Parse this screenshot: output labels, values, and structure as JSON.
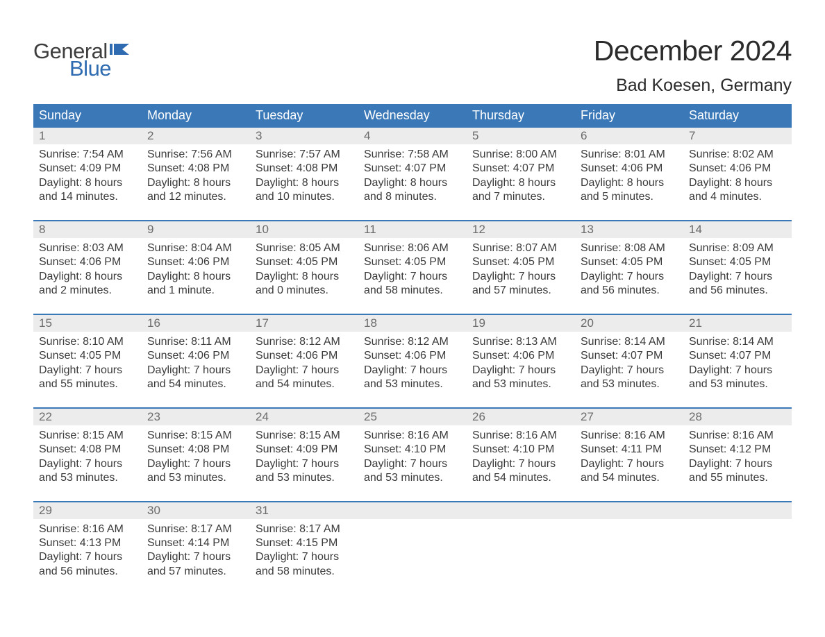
{
  "brand": {
    "text_general": "General",
    "text_blue": "Blue",
    "general_color": "#3d3d3d",
    "blue_color": "#2e6bb0",
    "flag_color": "#2e6bb0"
  },
  "title": "December 2024",
  "location": "Bad Koesen, Germany",
  "colors": {
    "header_bg": "#3b78b8",
    "header_text": "#ffffff",
    "week_divider": "#3b78b8",
    "daynum_bg": "#ececec",
    "daynum_text": "#6b6b6b",
    "body_text": "#3a3a3a",
    "page_bg": "#ffffff"
  },
  "typography": {
    "title_fontsize": 41,
    "location_fontsize": 25,
    "dow_fontsize": 18,
    "daynum_fontsize": 17,
    "cell_fontsize": 16,
    "logo_fontsize": 31
  },
  "days_of_week": [
    "Sunday",
    "Monday",
    "Tuesday",
    "Wednesday",
    "Thursday",
    "Friday",
    "Saturday"
  ],
  "weeks": [
    [
      {
        "n": "1",
        "sunrise": "Sunrise: 7:54 AM",
        "sunset": "Sunset: 4:09 PM",
        "daylight1": "Daylight: 8 hours",
        "daylight2": "and 14 minutes."
      },
      {
        "n": "2",
        "sunrise": "Sunrise: 7:56 AM",
        "sunset": "Sunset: 4:08 PM",
        "daylight1": "Daylight: 8 hours",
        "daylight2": "and 12 minutes."
      },
      {
        "n": "3",
        "sunrise": "Sunrise: 7:57 AM",
        "sunset": "Sunset: 4:08 PM",
        "daylight1": "Daylight: 8 hours",
        "daylight2": "and 10 minutes."
      },
      {
        "n": "4",
        "sunrise": "Sunrise: 7:58 AM",
        "sunset": "Sunset: 4:07 PM",
        "daylight1": "Daylight: 8 hours",
        "daylight2": "and 8 minutes."
      },
      {
        "n": "5",
        "sunrise": "Sunrise: 8:00 AM",
        "sunset": "Sunset: 4:07 PM",
        "daylight1": "Daylight: 8 hours",
        "daylight2": "and 7 minutes."
      },
      {
        "n": "6",
        "sunrise": "Sunrise: 8:01 AM",
        "sunset": "Sunset: 4:06 PM",
        "daylight1": "Daylight: 8 hours",
        "daylight2": "and 5 minutes."
      },
      {
        "n": "7",
        "sunrise": "Sunrise: 8:02 AM",
        "sunset": "Sunset: 4:06 PM",
        "daylight1": "Daylight: 8 hours",
        "daylight2": "and 4 minutes."
      }
    ],
    [
      {
        "n": "8",
        "sunrise": "Sunrise: 8:03 AM",
        "sunset": "Sunset: 4:06 PM",
        "daylight1": "Daylight: 8 hours",
        "daylight2": "and 2 minutes."
      },
      {
        "n": "9",
        "sunrise": "Sunrise: 8:04 AM",
        "sunset": "Sunset: 4:06 PM",
        "daylight1": "Daylight: 8 hours",
        "daylight2": "and 1 minute."
      },
      {
        "n": "10",
        "sunrise": "Sunrise: 8:05 AM",
        "sunset": "Sunset: 4:05 PM",
        "daylight1": "Daylight: 8 hours",
        "daylight2": "and 0 minutes."
      },
      {
        "n": "11",
        "sunrise": "Sunrise: 8:06 AM",
        "sunset": "Sunset: 4:05 PM",
        "daylight1": "Daylight: 7 hours",
        "daylight2": "and 58 minutes."
      },
      {
        "n": "12",
        "sunrise": "Sunrise: 8:07 AM",
        "sunset": "Sunset: 4:05 PM",
        "daylight1": "Daylight: 7 hours",
        "daylight2": "and 57 minutes."
      },
      {
        "n": "13",
        "sunrise": "Sunrise: 8:08 AM",
        "sunset": "Sunset: 4:05 PM",
        "daylight1": "Daylight: 7 hours",
        "daylight2": "and 56 minutes."
      },
      {
        "n": "14",
        "sunrise": "Sunrise: 8:09 AM",
        "sunset": "Sunset: 4:05 PM",
        "daylight1": "Daylight: 7 hours",
        "daylight2": "and 56 minutes."
      }
    ],
    [
      {
        "n": "15",
        "sunrise": "Sunrise: 8:10 AM",
        "sunset": "Sunset: 4:05 PM",
        "daylight1": "Daylight: 7 hours",
        "daylight2": "and 55 minutes."
      },
      {
        "n": "16",
        "sunrise": "Sunrise: 8:11 AM",
        "sunset": "Sunset: 4:06 PM",
        "daylight1": "Daylight: 7 hours",
        "daylight2": "and 54 minutes."
      },
      {
        "n": "17",
        "sunrise": "Sunrise: 8:12 AM",
        "sunset": "Sunset: 4:06 PM",
        "daylight1": "Daylight: 7 hours",
        "daylight2": "and 54 minutes."
      },
      {
        "n": "18",
        "sunrise": "Sunrise: 8:12 AM",
        "sunset": "Sunset: 4:06 PM",
        "daylight1": "Daylight: 7 hours",
        "daylight2": "and 53 minutes."
      },
      {
        "n": "19",
        "sunrise": "Sunrise: 8:13 AM",
        "sunset": "Sunset: 4:06 PM",
        "daylight1": "Daylight: 7 hours",
        "daylight2": "and 53 minutes."
      },
      {
        "n": "20",
        "sunrise": "Sunrise: 8:14 AM",
        "sunset": "Sunset: 4:07 PM",
        "daylight1": "Daylight: 7 hours",
        "daylight2": "and 53 minutes."
      },
      {
        "n": "21",
        "sunrise": "Sunrise: 8:14 AM",
        "sunset": "Sunset: 4:07 PM",
        "daylight1": "Daylight: 7 hours",
        "daylight2": "and 53 minutes."
      }
    ],
    [
      {
        "n": "22",
        "sunrise": "Sunrise: 8:15 AM",
        "sunset": "Sunset: 4:08 PM",
        "daylight1": "Daylight: 7 hours",
        "daylight2": "and 53 minutes."
      },
      {
        "n": "23",
        "sunrise": "Sunrise: 8:15 AM",
        "sunset": "Sunset: 4:08 PM",
        "daylight1": "Daylight: 7 hours",
        "daylight2": "and 53 minutes."
      },
      {
        "n": "24",
        "sunrise": "Sunrise: 8:15 AM",
        "sunset": "Sunset: 4:09 PM",
        "daylight1": "Daylight: 7 hours",
        "daylight2": "and 53 minutes."
      },
      {
        "n": "25",
        "sunrise": "Sunrise: 8:16 AM",
        "sunset": "Sunset: 4:10 PM",
        "daylight1": "Daylight: 7 hours",
        "daylight2": "and 53 minutes."
      },
      {
        "n": "26",
        "sunrise": "Sunrise: 8:16 AM",
        "sunset": "Sunset: 4:10 PM",
        "daylight1": "Daylight: 7 hours",
        "daylight2": "and 54 minutes."
      },
      {
        "n": "27",
        "sunrise": "Sunrise: 8:16 AM",
        "sunset": "Sunset: 4:11 PM",
        "daylight1": "Daylight: 7 hours",
        "daylight2": "and 54 minutes."
      },
      {
        "n": "28",
        "sunrise": "Sunrise: 8:16 AM",
        "sunset": "Sunset: 4:12 PM",
        "daylight1": "Daylight: 7 hours",
        "daylight2": "and 55 minutes."
      }
    ],
    [
      {
        "n": "29",
        "sunrise": "Sunrise: 8:16 AM",
        "sunset": "Sunset: 4:13 PM",
        "daylight1": "Daylight: 7 hours",
        "daylight2": "and 56 minutes."
      },
      {
        "n": "30",
        "sunrise": "Sunrise: 8:17 AM",
        "sunset": "Sunset: 4:14 PM",
        "daylight1": "Daylight: 7 hours",
        "daylight2": "and 57 minutes."
      },
      {
        "n": "31",
        "sunrise": "Sunrise: 8:17 AM",
        "sunset": "Sunset: 4:15 PM",
        "daylight1": "Daylight: 7 hours",
        "daylight2": "and 58 minutes."
      },
      {
        "n": "",
        "sunrise": "",
        "sunset": "",
        "daylight1": "",
        "daylight2": ""
      },
      {
        "n": "",
        "sunrise": "",
        "sunset": "",
        "daylight1": "",
        "daylight2": ""
      },
      {
        "n": "",
        "sunrise": "",
        "sunset": "",
        "daylight1": "",
        "daylight2": ""
      },
      {
        "n": "",
        "sunrise": "",
        "sunset": "",
        "daylight1": "",
        "daylight2": ""
      }
    ]
  ]
}
